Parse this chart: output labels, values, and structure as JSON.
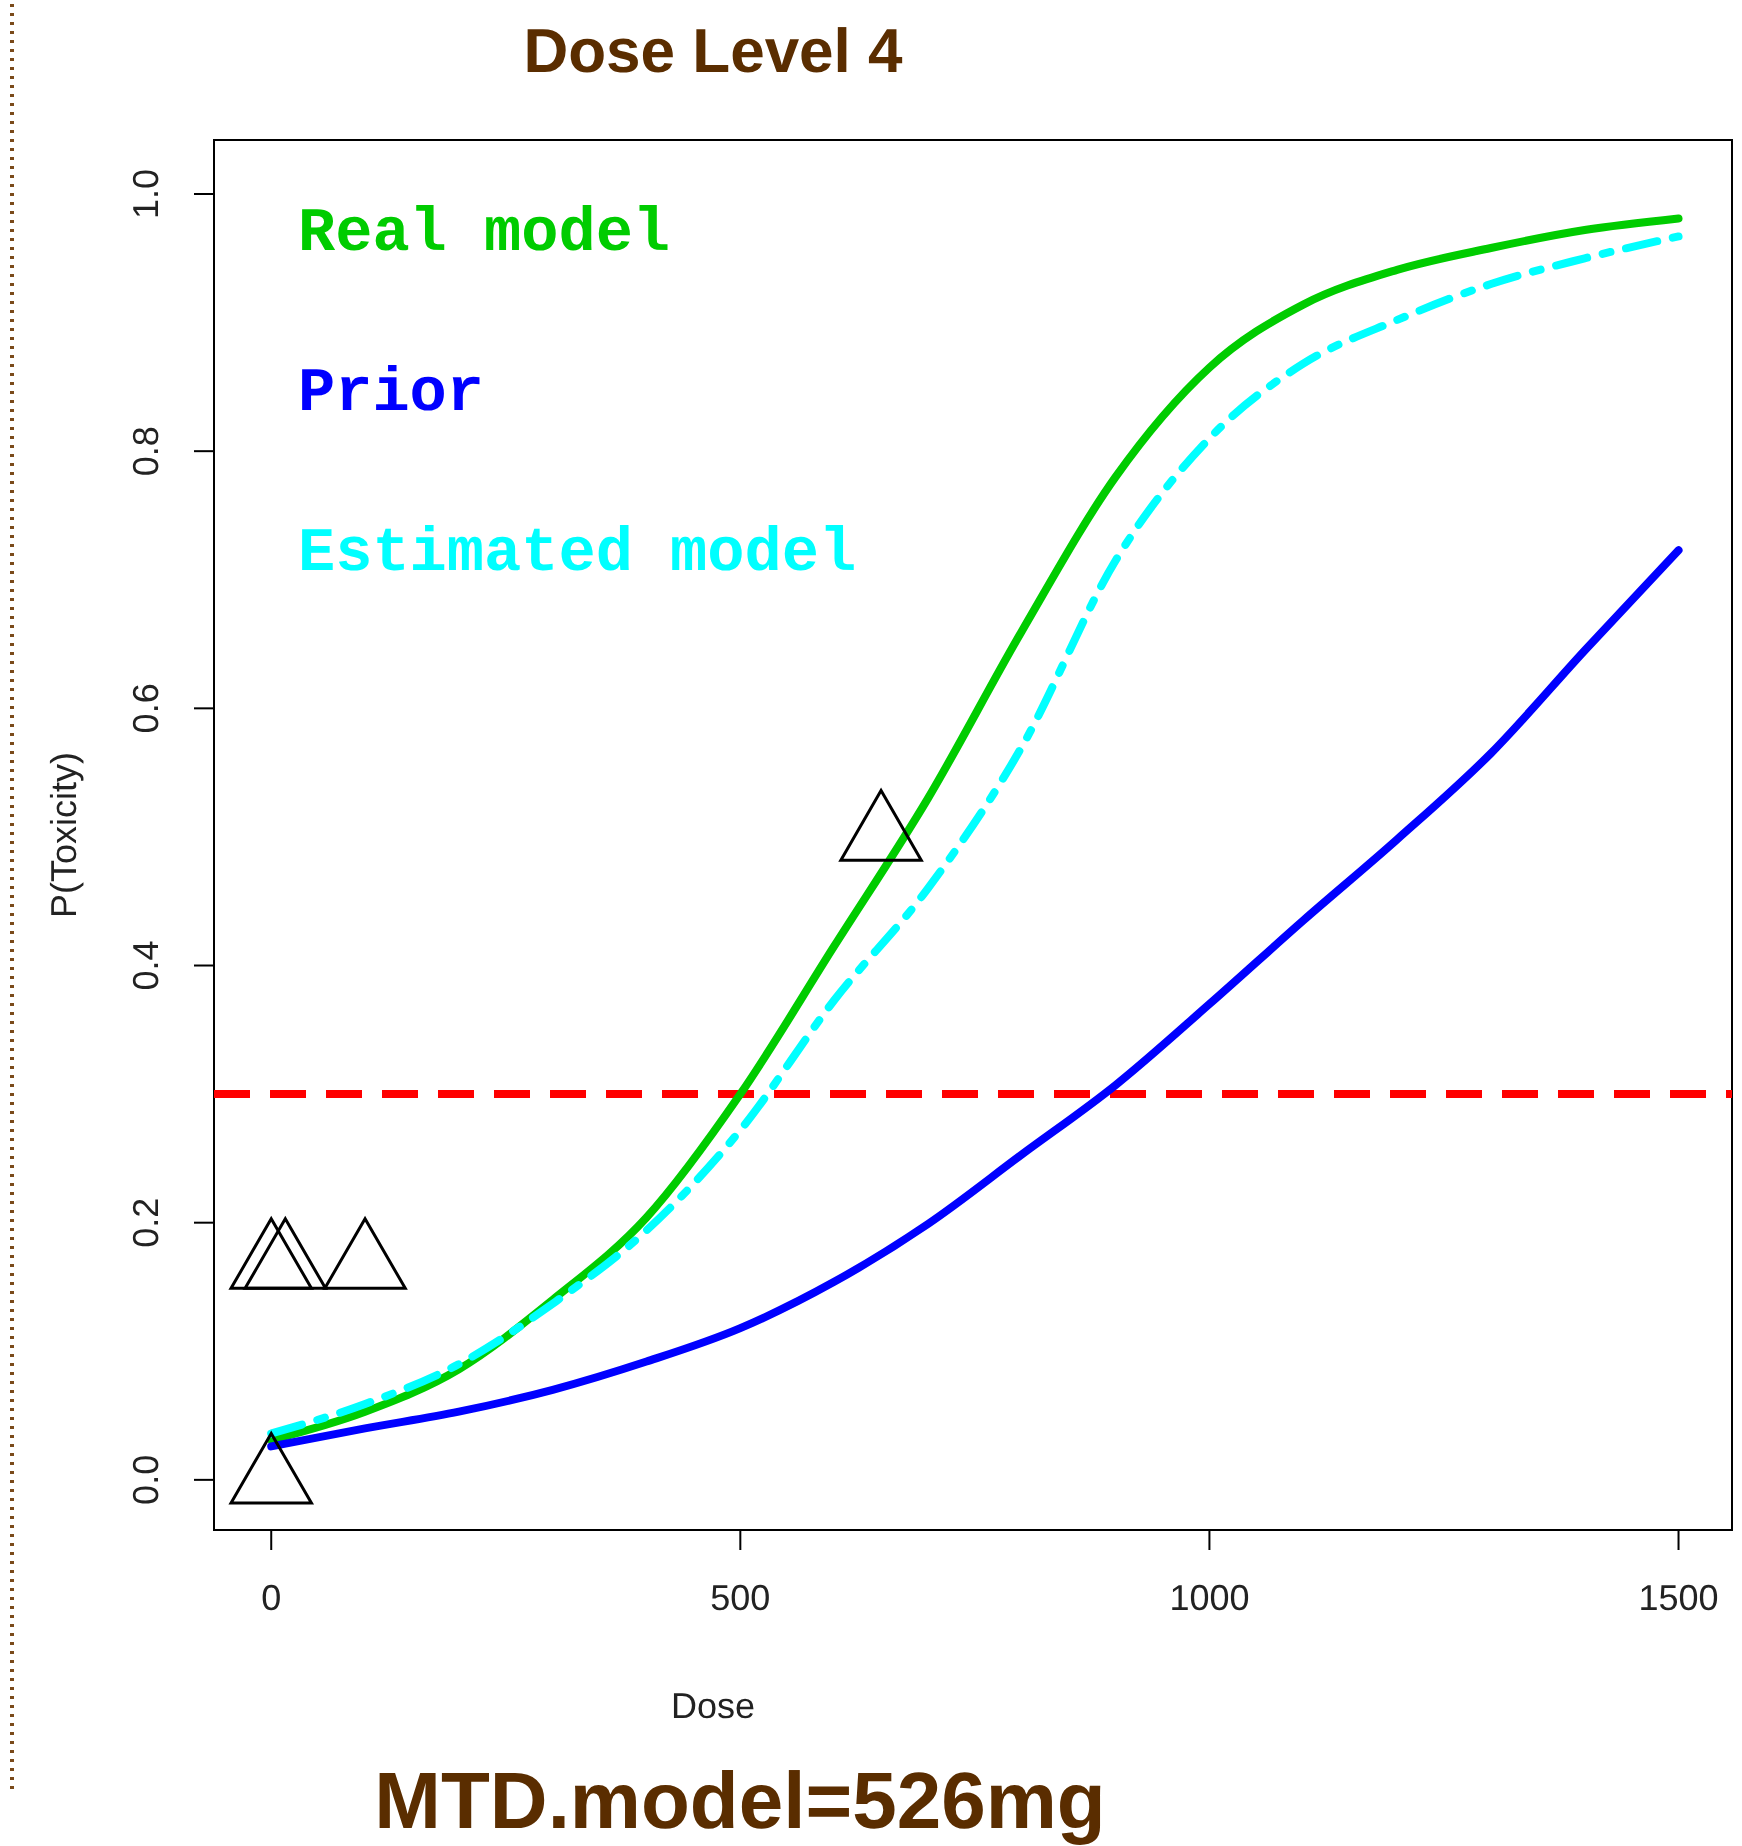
{
  "chart_data": {
    "type": "line",
    "title": "Dose Level 4",
    "xlabel": "Dose",
    "ylabel": "P(Toxicity)",
    "x": [
      0,
      100,
      200,
      300,
      400,
      500,
      600,
      700,
      800,
      900,
      1000,
      1100,
      1200,
      1300,
      1400,
      1500
    ],
    "series": [
      {
        "name": "Real model",
        "color": "#00cc00",
        "line_style": "solid",
        "values": [
          0.031,
          0.053,
          0.086,
          0.14,
          0.204,
          0.3,
          0.415,
          0.53,
          0.66,
          0.78,
          0.865,
          0.914,
          0.941,
          0.958,
          0.972,
          0.981
        ]
      },
      {
        "name": "Prior",
        "color": "#0000ff",
        "line_style": "solid",
        "values": [
          0.026,
          0.04,
          0.053,
          0.07,
          0.092,
          0.118,
          0.154,
          0.199,
          0.253,
          0.307,
          0.37,
          0.435,
          0.498,
          0.565,
          0.645,
          0.723
        ]
      },
      {
        "name": "Estimated model",
        "color": "#00ffff",
        "line_style": "dashed",
        "values": [
          0.036,
          0.059,
          0.09,
          0.137,
          0.194,
          0.272,
          0.373,
          0.46,
          0.57,
          0.715,
          0.81,
          0.868,
          0.902,
          0.93,
          0.95,
          0.967
        ]
      },
      {
        "type": "scatter",
        "color": "#000000",
        "marker": "triangle",
        "x": [
          0,
          0,
          15,
          100,
          650
        ],
        "values": [
          0.0,
          0.167,
          0.167,
          0.167,
          0.5
        ]
      }
    ],
    "xlim": [
      -61,
      1557
    ],
    "ylim": [
      -0.039,
      1.042
    ],
    "xticks": [
      0,
      500,
      1000,
      1500
    ],
    "yticks": [
      {
        "value": 0,
        "label": "0.0"
      },
      0.2,
      0.4,
      0.6,
      0.8,
      {
        "value": 1,
        "label": "1.0"
      }
    ],
    "ref_lines": [
      {
        "axis": "y",
        "value": 0.3,
        "color": "#ff0000",
        "line_style": "dashed"
      }
    ],
    "annotations": [
      "MTD.model=526mg"
    ],
    "legend": "top left",
    "grid": false
  }
}
